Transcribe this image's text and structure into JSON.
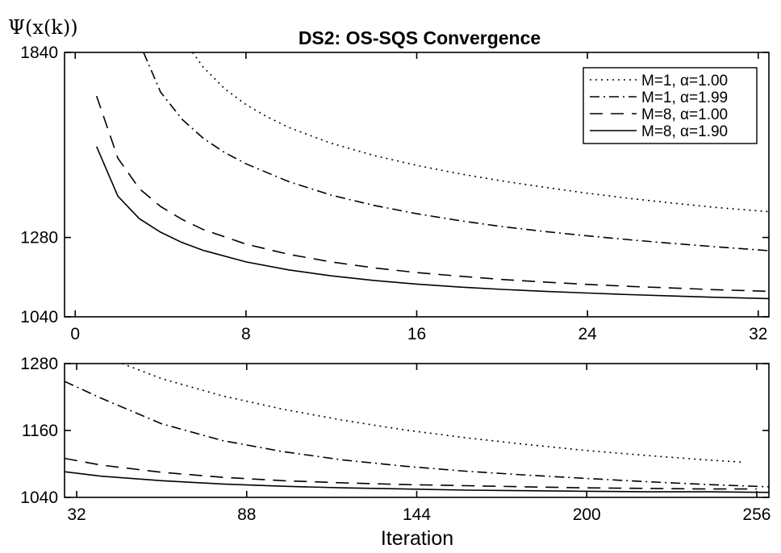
{
  "chart_data": [
    {
      "type": "line",
      "title": "DS2: OS-SQS Convergence",
      "ylabel": "Ψ(x(k))",
      "xlabel": "",
      "xlim": [
        -0.5,
        32.5
      ],
      "ylim": [
        1040,
        1840
      ],
      "xticks": [
        "0",
        "8",
        "16",
        "24",
        "32"
      ],
      "yticks": [
        "1040",
        "1280",
        "1840"
      ],
      "legend_position": "top-right",
      "series": [
        {
          "name": "M=1, α=1.00",
          "dash": "dotted",
          "x": [
            5.5,
            6,
            7,
            8,
            9,
            10,
            12,
            14,
            16,
            18,
            20,
            22,
            24,
            26,
            28,
            30,
            32.5
          ],
          "y": [
            1840,
            1795,
            1730,
            1682,
            1645,
            1613,
            1565,
            1528,
            1498,
            1473,
            1451,
            1432,
            1414,
            1398,
            1384,
            1371,
            1358
          ]
        },
        {
          "name": "M=1, α=1.99",
          "dash": "dashdot",
          "x": [
            3.2,
            4,
            5,
            6,
            7,
            8,
            10,
            12,
            14,
            16,
            18,
            20,
            22,
            24,
            26,
            28,
            30,
            32.5
          ],
          "y": [
            1840,
            1720,
            1638,
            1580,
            1537,
            1503,
            1449,
            1408,
            1377,
            1352,
            1331,
            1313,
            1298,
            1285,
            1273,
            1262,
            1252,
            1240
          ]
        },
        {
          "name": "M=8, α=1.00",
          "dash": "dashed",
          "x": [
            1,
            2,
            3,
            4,
            5,
            6,
            8,
            10,
            12,
            14,
            16,
            18,
            20,
            22,
            24,
            26,
            28,
            30,
            32.5
          ],
          "y": [
            1708,
            1520,
            1428,
            1374,
            1335,
            1304,
            1260,
            1229,
            1206,
            1188,
            1174,
            1163,
            1153,
            1145,
            1138,
            1132,
            1127,
            1122,
            1117
          ]
        },
        {
          "name": "M=8, α=1.90",
          "dash": "solid",
          "x": [
            1,
            2,
            3,
            4,
            5,
            6,
            8,
            10,
            12,
            14,
            16,
            18,
            20,
            22,
            24,
            26,
            28,
            30,
            32.5
          ],
          "y": [
            1555,
            1405,
            1337,
            1296,
            1265,
            1241,
            1206,
            1182,
            1164,
            1150,
            1139,
            1130,
            1123,
            1117,
            1112,
            1107,
            1103,
            1099,
            1095
          ]
        }
      ]
    },
    {
      "type": "line",
      "title": "",
      "ylabel": "",
      "xlabel": "Iteration",
      "xlim": [
        28,
        260
      ],
      "ylim": [
        1040,
        1280
      ],
      "xticks": [
        "32",
        "88",
        "144",
        "200",
        "256"
      ],
      "yticks": [
        "1040",
        "1160",
        "1280"
      ],
      "series": [
        {
          "name": "M=1, α=1.00",
          "dash": "dotted",
          "x": [
            47,
            60,
            80,
            100,
            120,
            140,
            160,
            180,
            200,
            220,
            240,
            252
          ],
          "y": [
            1280,
            1253,
            1222,
            1198,
            1178,
            1161,
            1147,
            1135,
            1124,
            1115,
            1107,
            1103
          ]
        },
        {
          "name": "M=1, α=1.99",
          "dash": "dashdot",
          "x": [
            28,
            40,
            60,
            80,
            100,
            120,
            140,
            160,
            180,
            200,
            220,
            240,
            260
          ],
          "y": [
            1248,
            1218,
            1172,
            1142,
            1122,
            1107,
            1096,
            1087,
            1080,
            1074,
            1068,
            1063,
            1059
          ]
        },
        {
          "name": "M=8, α=1.00",
          "dash": "dashed",
          "x": [
            28,
            40,
            60,
            80,
            100,
            120,
            140,
            160,
            180,
            200,
            220,
            240,
            256
          ],
          "y": [
            1110,
            1098,
            1085,
            1076,
            1070,
            1066,
            1063,
            1061,
            1059,
            1057,
            1056,
            1055,
            1055
          ]
        },
        {
          "name": "M=8, α=1.90",
          "dash": "solid",
          "x": [
            28,
            40,
            60,
            80,
            100,
            120,
            140,
            160,
            180,
            200,
            220,
            240,
            260
          ],
          "y": [
            1086,
            1078,
            1070,
            1064,
            1060,
            1057,
            1055,
            1053,
            1052,
            1051,
            1050,
            1050,
            1049
          ]
        }
      ]
    }
  ]
}
